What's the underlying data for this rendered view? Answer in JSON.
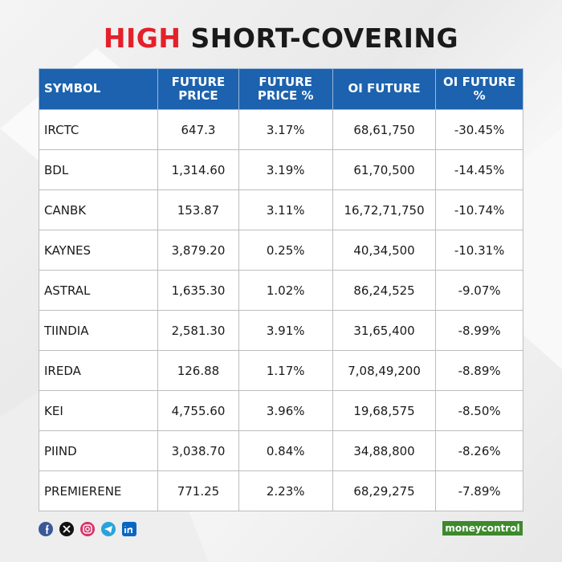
{
  "title": {
    "highlight": "HIGH",
    "rest": "SHORT-COVERING"
  },
  "table": {
    "header": [
      "SYMBOL",
      "FUTURE PRICE",
      "FUTURE PRICE %",
      "OI FUTURE",
      "OI FUTURE %"
    ],
    "rows": [
      [
        "IRCTC",
        "647.3",
        "3.17%",
        "68,61,750",
        "-30.45%"
      ],
      [
        "BDL",
        "1,314.60",
        "3.19%",
        "61,70,500",
        "-14.45%"
      ],
      [
        "CANBK",
        "153.87",
        "3.11%",
        "16,72,71,750",
        "-10.74%"
      ],
      [
        "KAYNES",
        "3,879.20",
        "0.25%",
        "40,34,500",
        "-10.31%"
      ],
      [
        "ASTRAL",
        "1,635.30",
        "1.02%",
        "86,24,525",
        "-9.07%"
      ],
      [
        "TIINDIA",
        "2,581.30",
        "3.91%",
        "31,65,400",
        "-8.99%"
      ],
      [
        "IREDA",
        "126.88",
        "1.17%",
        "7,08,49,200",
        "-8.89%"
      ],
      [
        "KEI",
        "4,755.60",
        "3.96%",
        "19,68,575",
        "-8.50%"
      ],
      [
        "PIIND",
        "3,038.70",
        "0.84%",
        "34,88,800",
        "-8.26%"
      ],
      [
        "PREMIERENE",
        "771.25",
        "2.23%",
        "68,29,275",
        "-7.89%"
      ]
    ]
  },
  "footer": {
    "brand": "moneycontrol"
  }
}
